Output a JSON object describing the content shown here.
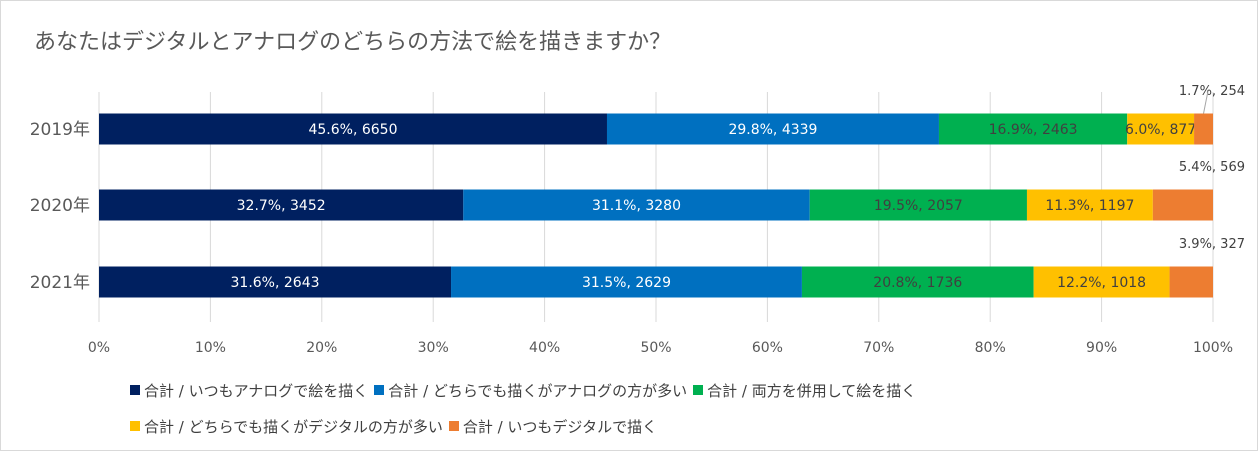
{
  "chart_data": {
    "type": "bar",
    "orientation": "horizontal",
    "stacked": "percent",
    "title": "あなたはデジタルとアナログのどちらの方法で絵を描きますか？",
    "categories": [
      "2019年",
      "2020年",
      "2021年"
    ],
    "series": [
      {
        "name": "合計 / いつもアナログで絵を描く",
        "color": "#002060",
        "values": [
          45.6,
          32.7,
          31.6
        ],
        "counts": [
          6650,
          3452,
          2643
        ],
        "labels": [
          "45.6%, 6650",
          "32.7%, 3452",
          "31.6%, 2643"
        ]
      },
      {
        "name": "合計 / どちらでも描くがアナログの方が多い",
        "color": "#0070c0",
        "values": [
          29.8,
          31.1,
          31.5
        ],
        "counts": [
          4339,
          3280,
          2629
        ],
        "labels": [
          "29.8%, 4339",
          "31.1%, 3280",
          "31.5%, 2629"
        ]
      },
      {
        "name": "合計 / 両方を併用して絵を描く",
        "color": "#00b050",
        "values": [
          16.9,
          19.5,
          20.8
        ],
        "counts": [
          2463,
          2057,
          1736
        ],
        "labels": [
          "16.9%, 2463",
          "19.5%, 2057",
          "20.8%, 1736"
        ]
      },
      {
        "name": "合計 / どちらでも描くがデジタルの方が多い",
        "color": "#ffc000",
        "values": [
          6.0,
          11.3,
          12.2
        ],
        "counts": [
          877,
          1197,
          1018
        ],
        "labels": [
          "6.0%, 877",
          "11.3%, 1197",
          "12.2%, 1018"
        ]
      },
      {
        "name": "合計 / いつもデジタルで描く",
        "color": "#ed7d31",
        "values": [
          1.7,
          5.4,
          3.9
        ],
        "counts": [
          254,
          569,
          327
        ],
        "labels": [
          "1.7%, 254",
          "5.4%, 569",
          "3.9%, 327"
        ]
      }
    ],
    "xticks": [
      "0%",
      "10%",
      "20%",
      "30%",
      "40%",
      "50%",
      "60%",
      "70%",
      "80%",
      "90%",
      "100%"
    ],
    "xlim": [
      0,
      100
    ],
    "grid": true,
    "legend_position": "bottom"
  }
}
